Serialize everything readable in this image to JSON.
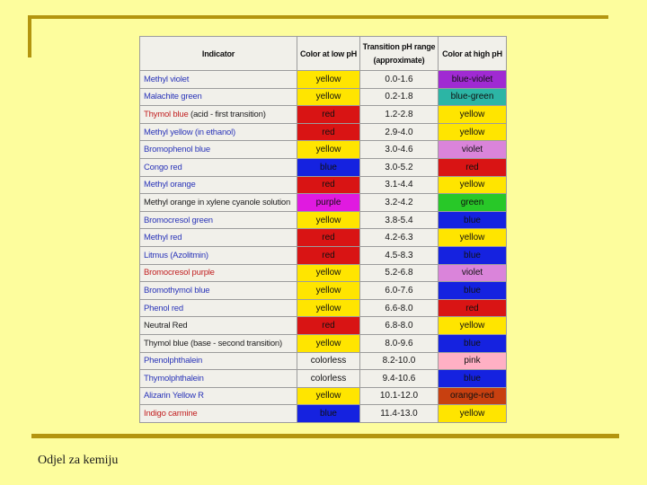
{
  "slide": {
    "background_color": "#fdfd9d",
    "rule_color": "#b3950f",
    "footer": "Odjel za kemiju"
  },
  "palette": {
    "link_blue": "#2a35b8",
    "link_red": "#c22222",
    "plain_black": "#222222"
  },
  "table": {
    "headers": {
      "indicator": "Indicator",
      "low": "Color at low pH",
      "range_line1": "Transition pH range",
      "range_line2": "(approximate)",
      "high": "Color at high pH"
    },
    "rows": [
      {
        "name": "Methyl violet",
        "name_color": "#2a35b8",
        "low": "yellow",
        "low_bg": "#ffe500",
        "range": "0.0-1.6",
        "high": "blue-violet",
        "high_bg": "#a02ad2"
      },
      {
        "name": "Malachite green",
        "name_color": "#2a35b8",
        "low": "yellow",
        "low_bg": "#ffe500",
        "range": "0.2-1.8",
        "high": "blue-green",
        "high_bg": "#2cb5a5"
      },
      {
        "name": "Thymol blue",
        "name_color": "#c22222",
        "suffix": " (acid - first transition)",
        "suffix_color": "#222222",
        "low": "red",
        "low_bg": "#d91414",
        "range": "1.2-2.8",
        "high": "yellow",
        "high_bg": "#ffe500"
      },
      {
        "name": "Methyl yellow (in ethanol)",
        "name_color": "#2a35b8",
        "low": "red",
        "low_bg": "#d91414",
        "range": "2.9-4.0",
        "high": "yellow",
        "high_bg": "#ffe500"
      },
      {
        "name": "Bromophenol blue",
        "name_color": "#2a35b8",
        "low": "yellow",
        "low_bg": "#ffe500",
        "range": "3.0-4.6",
        "high": "violet",
        "high_bg": "#da84da"
      },
      {
        "name": "Congo red",
        "name_color": "#2a35b8",
        "low": "blue",
        "low_bg": "#1522e0",
        "range": "3.0-5.2",
        "high": "red",
        "high_bg": "#d91414"
      },
      {
        "name": "Methyl orange",
        "name_color": "#2a35b8",
        "low": "red",
        "low_bg": "#d91414",
        "range": "3.1-4.4",
        "high": "yellow",
        "high_bg": "#ffe500"
      },
      {
        "name": "Methyl orange in xylene cyanole solution",
        "name_color": "#222222",
        "low": "purple",
        "low_bg": "#e01ae0",
        "range": "3.2-4.2",
        "high": "green",
        "high_bg": "#28c828"
      },
      {
        "name": "Bromocresol green",
        "name_color": "#2a35b8",
        "low": "yellow",
        "low_bg": "#ffe500",
        "range": "3.8-5.4",
        "high": "blue",
        "high_bg": "#1522e0"
      },
      {
        "name": "Methyl red",
        "name_color": "#2a35b8",
        "low": "red",
        "low_bg": "#d91414",
        "range": "4.2-6.3",
        "high": "yellow",
        "high_bg": "#ffe500"
      },
      {
        "name": "Litmus (Azolitmin)",
        "name_color": "#2a35b8",
        "low": "red",
        "low_bg": "#d91414",
        "range": "4.5-8.3",
        "high": "blue",
        "high_bg": "#1522e0"
      },
      {
        "name": "Bromocresol purple",
        "name_color": "#c22222",
        "low": "yellow",
        "low_bg": "#ffe500",
        "range": "5.2-6.8",
        "high": "violet",
        "high_bg": "#da84da"
      },
      {
        "name": "Bromothymol blue",
        "name_color": "#2a35b8",
        "low": "yellow",
        "low_bg": "#ffe500",
        "range": "6.0-7.6",
        "high": "blue",
        "high_bg": "#1522e0"
      },
      {
        "name": "Phenol red",
        "name_color": "#2a35b8",
        "low": "yellow",
        "low_bg": "#ffe500",
        "range": "6.6-8.0",
        "high": "red",
        "high_bg": "#d91414"
      },
      {
        "name": "Neutral Red",
        "name_color": "#222222",
        "low": "red",
        "low_bg": "#d91414",
        "range": "6.8-8.0",
        "high": "yellow",
        "high_bg": "#ffe500"
      },
      {
        "name": "Thymol blue (base - second transition)",
        "name_color": "#222222",
        "low": "yellow",
        "low_bg": "#ffe500",
        "range": "8.0-9.6",
        "high": "blue",
        "high_bg": "#1522e0"
      },
      {
        "name": "Phenolphthalein",
        "name_color": "#2a35b8",
        "low": "colorless",
        "low_bg": "",
        "range": "8.2-10.0",
        "high": "pink",
        "high_bg": "#ffb0c4"
      },
      {
        "name": "Thymolphthalein",
        "name_color": "#2a35b8",
        "low": "colorless",
        "low_bg": "",
        "range": "9.4-10.6",
        "high": "blue",
        "high_bg": "#1522e0"
      },
      {
        "name": "Alizarin Yellow R",
        "name_color": "#2a35b8",
        "low": "yellow",
        "low_bg": "#ffe500",
        "range": "10.1-12.0",
        "high": "orange-red",
        "high_bg": "#c84010"
      },
      {
        "name": "Indigo carmine",
        "name_color": "#c22222",
        "low": "blue",
        "low_bg": "#1522e0",
        "range": "11.4-13.0",
        "high": "yellow",
        "high_bg": "#ffe500"
      }
    ]
  }
}
